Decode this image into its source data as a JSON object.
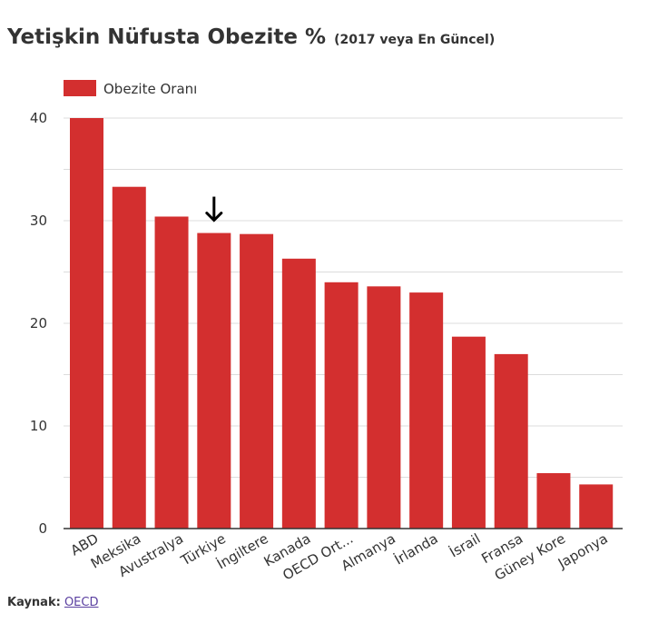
{
  "title": "Yetişkin Nüfusta Obezite %",
  "subtitle": "(2017 veya En Güncel)",
  "source": {
    "label": "Kaynak:",
    "link_text": "OECD"
  },
  "colors": {
    "bar": "#d32f2f",
    "grid": "#dcdcdc",
    "text": "#333333",
    "axis": "#333333"
  },
  "chart_data": {
    "type": "bar",
    "title": "Yetişkin Nüfusta Obezite %",
    "subtitle": "(2017 veya En Güncel)",
    "xlabel": "",
    "ylabel": "",
    "categories": [
      "ABD",
      "Meksika",
      "Avustralya",
      "Türkiye",
      "İngiltere",
      "Kanada",
      "OECD Ort...",
      "Almanya",
      "İrlanda",
      "İsrail",
      "Fransa",
      "Güney Kore",
      "Japonya"
    ],
    "series": [
      {
        "name": "Obezite Oranı",
        "values": [
          40.0,
          33.3,
          30.4,
          28.8,
          28.7,
          26.3,
          24.0,
          23.6,
          23.0,
          18.7,
          17.0,
          5.4,
          4.3
        ]
      }
    ],
    "ylim": [
      0,
      40
    ],
    "yticks": [
      0,
      10,
      20,
      30,
      40
    ],
    "grid": true,
    "legend": "top-left",
    "highlight": {
      "category": "Türkiye",
      "marker": "down-arrow-icon"
    }
  }
}
